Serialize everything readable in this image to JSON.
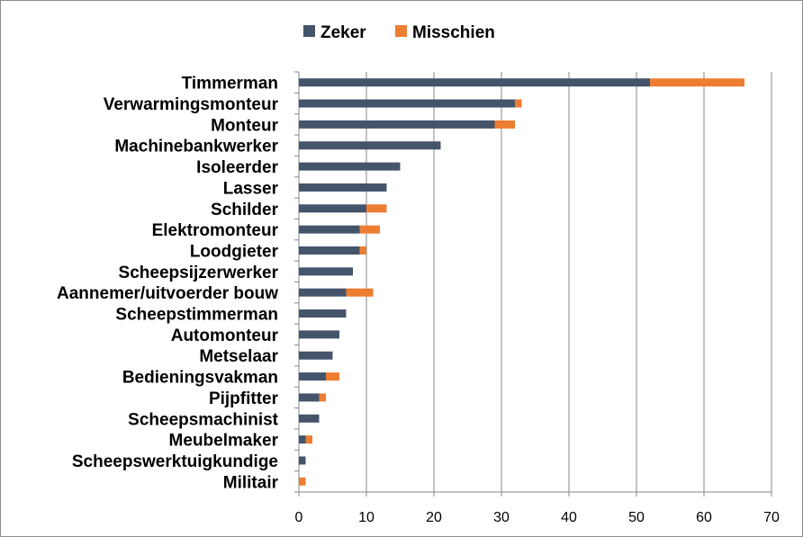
{
  "chart_data": {
    "type": "bar",
    "orientation": "horizontal",
    "stacked": true,
    "categories": [
      "Timmerman",
      "Verwarmingsmonteur",
      "Monteur",
      "Machinebankwerker",
      "Isoleerder",
      "Lasser",
      "Schilder",
      "Elektromonteur",
      "Loodgieter",
      "Scheepsijzerwerker",
      "Aannemer/uitvoerder bouw",
      "Scheepstimmerman",
      "Automonteur",
      "Metselaar",
      "Bedieningsvakman",
      "Pijpfitter",
      "Scheepsmachinist",
      "Meubelmaker",
      "Scheepswerktuigkundige",
      "Militair"
    ],
    "series": [
      {
        "name": "Zeker",
        "color": "#44546a",
        "values": [
          52,
          32,
          29,
          21,
          15,
          13,
          10,
          9,
          9,
          8,
          7,
          7,
          6,
          5,
          4,
          3,
          3,
          1,
          1,
          0
        ]
      },
      {
        "name": "Misschien",
        "color": "#ed7d31",
        "values": [
          14,
          1,
          3,
          0,
          0,
          0,
          3,
          3,
          1,
          0,
          4,
          0,
          0,
          0,
          2,
          1,
          0,
          1,
          0,
          1
        ]
      }
    ],
    "xlim": [
      0,
      70
    ],
    "ticks": [
      "0",
      "10",
      "20",
      "30",
      "40",
      "50",
      "60",
      "70"
    ],
    "grid": "vertical",
    "legend": "top-center",
    "title": "",
    "xlabel": "",
    "ylabel": ""
  }
}
